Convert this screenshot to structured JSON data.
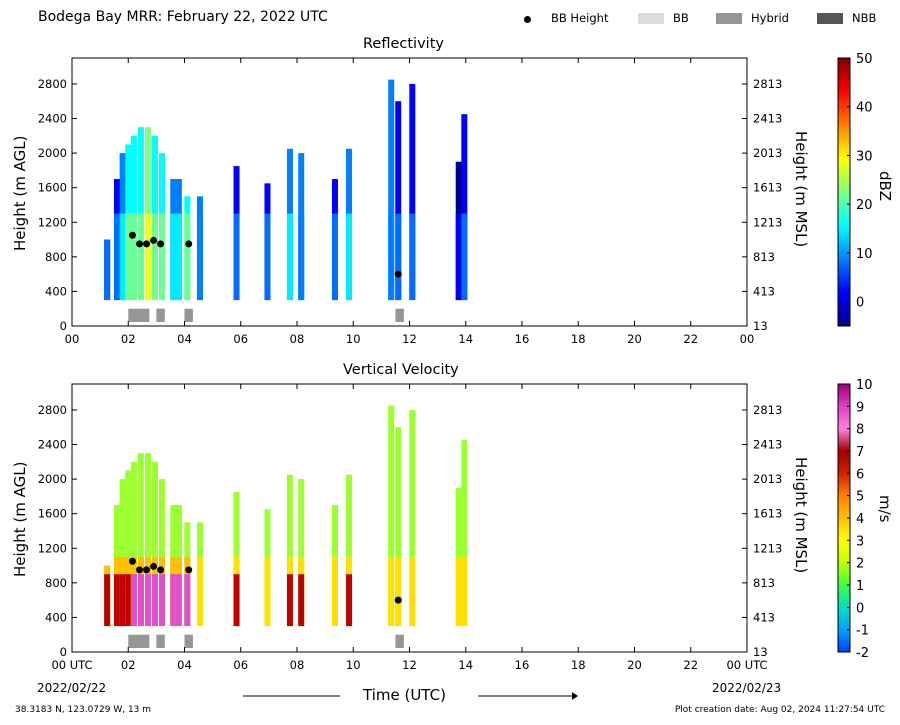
{
  "header": {
    "title": "Bodega Bay MRR:  February 22, 2022 UTC",
    "legend": [
      {
        "label": "BB Height",
        "kind": "dot",
        "color": "#000000"
      },
      {
        "label": "BB",
        "kind": "box",
        "color": "#dcdcdc"
      },
      {
        "label": "Hybrid",
        "kind": "box",
        "color": "#969696"
      },
      {
        "label": "NBB",
        "kind": "box",
        "color": "#555555"
      }
    ]
  },
  "footer": {
    "location": "38.3183 N, 123.0729 W, 13 m",
    "creation": "Plot creation date: Aug 02, 2024 11:27:54 UTC",
    "time_label": "Time (UTC)",
    "date_start": "2022/02/22",
    "date_end": "2022/02/23"
  },
  "chart_data": [
    {
      "type": "heatmap",
      "title": "Reflectivity",
      "xlabel": "",
      "ylabel": "Height (m AGL)",
      "ylabel_right": "Height (m MSL)",
      "xlim": [
        0,
        24
      ],
      "ylim": [
        0,
        3100
      ],
      "x_tick_labels": [
        "00",
        "02",
        "04",
        "06",
        "08",
        "10",
        "12",
        "14",
        "16",
        "18",
        "20",
        "22",
        "00"
      ],
      "y_ticks": [
        0,
        400,
        800,
        1200,
        1600,
        2000,
        2400,
        2800
      ],
      "y_ticks_right": [
        "13",
        "413",
        "813",
        "1213",
        "1613",
        "2013",
        "2413",
        "2813"
      ],
      "colorbar": {
        "label": "dBZ",
        "min": -5,
        "max": 50,
        "ticks": [
          "50",
          "40",
          "30",
          "20",
          "10",
          "0"
        ],
        "tick_values": [
          50,
          40,
          30,
          20,
          10,
          0
        ]
      },
      "bright_band_height": {
        "x": [
          2.15,
          2.4,
          2.65,
          2.9,
          3.15,
          4.15,
          11.6
        ],
        "y": [
          1050,
          950,
          950,
          990,
          950,
          950,
          600
        ]
      },
      "bb_type_bars": [
        {
          "type": "Hybrid",
          "x_start": 2.0,
          "x_end": 2.75
        },
        {
          "type": "Hybrid",
          "x_start": 3.0,
          "x_end": 3.3
        },
        {
          "type": "Hybrid",
          "x_start": 4.0,
          "x_end": 4.3
        },
        {
          "type": "Hybrid",
          "x_start": 11.5,
          "x_end": 11.8
        }
      ]
    },
    {
      "type": "heatmap",
      "title": "Vertical Velocity",
      "xlabel": "Time (UTC)",
      "ylabel": "Height (m AGL)",
      "ylabel_right": "Height (m MSL)",
      "xlim": [
        0,
        24
      ],
      "ylim": [
        0,
        3100
      ],
      "x_tick_labels": [
        "00 UTC",
        "02",
        "04",
        "06",
        "08",
        "10",
        "12",
        "14",
        "16",
        "18",
        "20",
        "22",
        "00 UTC"
      ],
      "y_ticks": [
        0,
        400,
        800,
        1200,
        1600,
        2000,
        2400,
        2800
      ],
      "y_ticks_right": [
        "13",
        "413",
        "813",
        "1213",
        "1613",
        "2013",
        "2413",
        "2813"
      ],
      "colorbar": {
        "label": "m/s",
        "min": -2,
        "max": 10,
        "ticks": [
          "10",
          "9",
          "8",
          "7",
          "6",
          "5",
          "4",
          "3",
          "2",
          "1",
          "0",
          "-1",
          "-2"
        ],
        "tick_values": [
          10,
          9,
          8,
          7,
          6,
          5,
          4,
          3,
          2,
          1,
          0,
          -1,
          -2
        ]
      },
      "bright_band_height": {
        "x": [
          2.15,
          2.4,
          2.65,
          2.9,
          3.15,
          4.15,
          11.6
        ],
        "y": [
          1050,
          950,
          950,
          990,
          950,
          950,
          600
        ]
      },
      "bb_type_bars": [
        {
          "type": "Hybrid",
          "x_start": 2.0,
          "x_end": 2.75
        },
        {
          "type": "Hybrid",
          "x_start": 3.0,
          "x_end": 3.3
        },
        {
          "type": "Hybrid",
          "x_start": 4.0,
          "x_end": 4.3
        },
        {
          "type": "Hybrid",
          "x_start": 11.5,
          "x_end": 11.8
        }
      ]
    }
  ],
  "echo_columns": [
    {
      "x": 1.25,
      "top": 1000,
      "z": 8
    },
    {
      "x": 1.6,
      "top": 1700,
      "z": 10
    },
    {
      "x": 1.8,
      "top": 2000,
      "z": 16
    },
    {
      "x": 2.0,
      "top": 2100,
      "z": 20
    },
    {
      "x": 2.2,
      "top": 2200,
      "z": 22
    },
    {
      "x": 2.45,
      "top": 2300,
      "z": 24
    },
    {
      "x": 2.7,
      "top": 2300,
      "z": 26
    },
    {
      "x": 2.95,
      "top": 2200,
      "z": 24
    },
    {
      "x": 3.2,
      "top": 2000,
      "z": 22
    },
    {
      "x": 3.6,
      "top": 1700,
      "z": 16
    },
    {
      "x": 3.8,
      "top": 1700,
      "z": 14
    },
    {
      "x": 4.1,
      "top": 1500,
      "z": 24
    },
    {
      "x": 4.55,
      "top": 1500,
      "z": 12
    },
    {
      "x": 5.85,
      "top": 1850,
      "z": 8
    },
    {
      "x": 6.95,
      "top": 1650,
      "z": 6
    },
    {
      "x": 7.75,
      "top": 2050,
      "z": 14
    },
    {
      "x": 8.15,
      "top": 2000,
      "z": 12
    },
    {
      "x": 9.35,
      "top": 1700,
      "z": 6
    },
    {
      "x": 9.85,
      "top": 2050,
      "z": 18
    },
    {
      "x": 11.35,
      "top": 2850,
      "z": 12
    },
    {
      "x": 11.6,
      "top": 2600,
      "z": 8
    },
    {
      "x": 12.1,
      "top": 2800,
      "z": 10
    },
    {
      "x": 13.75,
      "top": 1900,
      "z": 4
    },
    {
      "x": 13.95,
      "top": 2450,
      "z": 6
    }
  ],
  "colors": {
    "reflectivity_scale": [
      "#00008f",
      "#0000ff",
      "#0080ff",
      "#00ffff",
      "#80ff80",
      "#ffff00",
      "#ff8000",
      "#ff0000",
      "#800000"
    ],
    "velocity_scale": [
      "#0040ff",
      "#00a0ff",
      "#00e0c0",
      "#40ff40",
      "#c0ff00",
      "#ffff00",
      "#ffc000",
      "#ff8000",
      "#d02000",
      "#a00000",
      "#ff80e0",
      "#e040c0",
      "#a00080"
    ]
  }
}
